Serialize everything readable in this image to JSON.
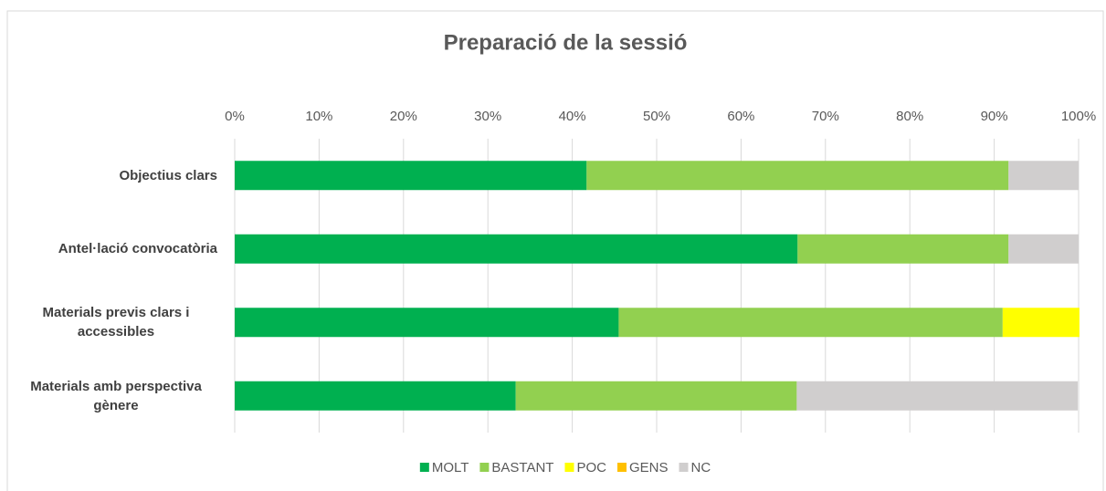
{
  "chart_data": {
    "type": "stacked-bar-horizontal",
    "title": "Preparació de la sessió",
    "categories": [
      "Objectius clars",
      "Antel·lació convocatòria",
      "Materials previs clars i accessibles",
      "Materials amb perspectiva gènere"
    ],
    "series": [
      {
        "name": "MOLT",
        "color": "#00b050",
        "values": [
          41.7,
          66.7,
          45.5,
          33.3
        ]
      },
      {
        "name": "BASTANT",
        "color": "#92d050",
        "values": [
          50,
          25,
          45.5,
          33.3
        ]
      },
      {
        "name": "POC",
        "color": "#ffff00",
        "values": [
          0,
          0,
          9.1,
          0
        ]
      },
      {
        "name": "GENS",
        "color": "#ffc000",
        "values": [
          0,
          0,
          0,
          0
        ]
      },
      {
        "name": "NC",
        "color": "#d0cece",
        "values": [
          8.3,
          8.3,
          0,
          33.3
        ]
      }
    ],
    "xlim": [
      0,
      100
    ],
    "xticks": [
      {
        "value": 0,
        "label": "0%"
      },
      {
        "value": 10,
        "label": "10%"
      },
      {
        "value": 20,
        "label": "20%"
      },
      {
        "value": 30,
        "label": "30%"
      },
      {
        "value": 40,
        "label": "40%"
      },
      {
        "value": 50,
        "label": "50%"
      },
      {
        "value": 60,
        "label": "60%"
      },
      {
        "value": 70,
        "label": "70%"
      },
      {
        "value": 80,
        "label": "80%"
      },
      {
        "value": 90,
        "label": "90%"
      },
      {
        "value": 100,
        "label": "100%"
      }
    ],
    "grid": true,
    "legend": "bottom"
  }
}
